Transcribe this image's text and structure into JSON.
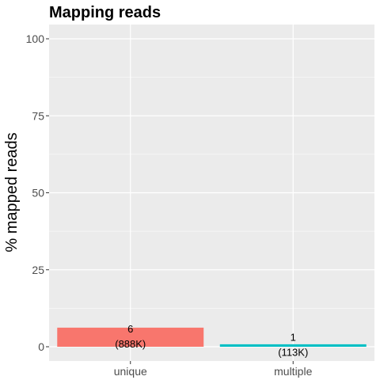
{
  "chart_data": {
    "type": "bar",
    "title": "Mapping reads",
    "xlabel": "",
    "ylabel": "% mapped reads",
    "ylim": [
      0,
      100
    ],
    "yticks": [
      0,
      25,
      50,
      75,
      100
    ],
    "categories": [
      "unique",
      "multiple"
    ],
    "values": [
      6.2,
      0.8
    ],
    "data_labels": [
      {
        "line1": "6",
        "line2": "(888K)"
      },
      {
        "line1": "1",
        "line2": "(113K)"
      }
    ],
    "colors": [
      "#F8766D",
      "#00BFC4"
    ],
    "panel_background": "#EBEBEB",
    "grid": true,
    "legend": "none"
  }
}
